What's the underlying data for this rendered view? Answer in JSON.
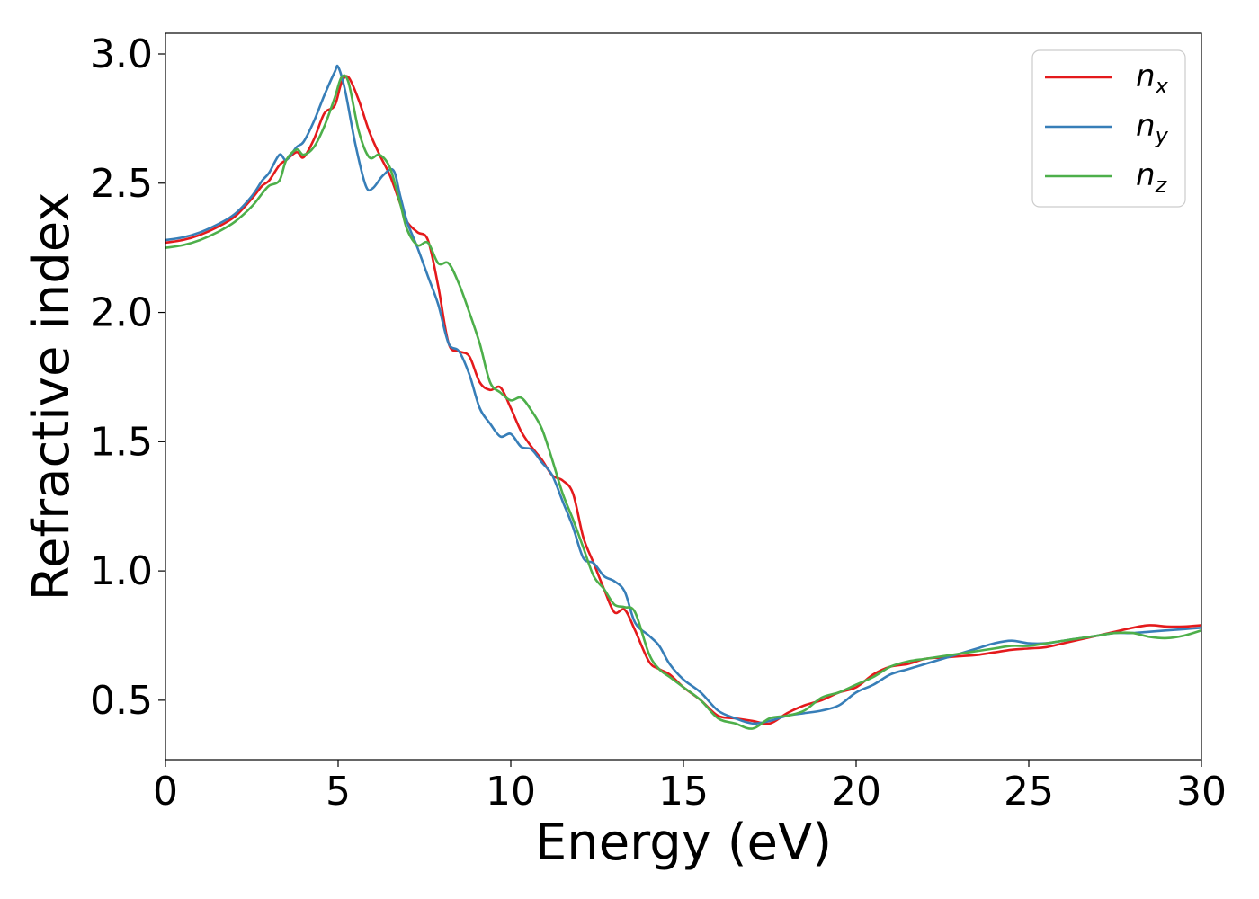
{
  "chart_data": {
    "type": "line",
    "title": "",
    "xlabel": "Energy (eV)",
    "ylabel": "Refractive index",
    "xlim": [
      0,
      30
    ],
    "ylim": [
      0.27,
      3.08
    ],
    "xticks": [
      0,
      5,
      10,
      15,
      20,
      25,
      30
    ],
    "xtick_labels": [
      "0",
      "5",
      "10",
      "15",
      "20",
      "25",
      "30"
    ],
    "yticks": [
      0.5,
      1.0,
      1.5,
      2.0,
      2.5,
      3.0
    ],
    "ytick_labels": [
      "0.5",
      "1.0",
      "1.5",
      "2.0",
      "2.5",
      "3.0"
    ],
    "grid": false,
    "legend_position": "top-right",
    "series": [
      {
        "name": "n",
        "subscript": "x",
        "color": "#e41a1c",
        "x": [
          0,
          0.5,
          1.0,
          1.5,
          2.0,
          2.5,
          2.8,
          3.0,
          3.3,
          3.5,
          3.8,
          4.0,
          4.3,
          4.6,
          4.9,
          5.1,
          5.3,
          5.6,
          5.9,
          6.2,
          6.5,
          6.8,
          7.0,
          7.3,
          7.6,
          7.9,
          8.2,
          8.5,
          8.8,
          9.1,
          9.4,
          9.7,
          10.0,
          10.3,
          10.6,
          10.9,
          11.2,
          11.5,
          11.8,
          12.1,
          12.4,
          12.7,
          13.0,
          13.3,
          13.6,
          14.0,
          14.3,
          14.6,
          15.0,
          15.5,
          16.0,
          16.5,
          17.0,
          17.5,
          18.0,
          18.5,
          19.0,
          19.5,
          20.0,
          20.5,
          21.0,
          21.5,
          22.0,
          22.5,
          23.0,
          23.5,
          24.0,
          24.5,
          25.0,
          25.5,
          26.0,
          26.5,
          27.0,
          27.5,
          28.0,
          28.5,
          29.0,
          29.5,
          30.0
        ],
        "y": [
          2.27,
          2.28,
          2.3,
          2.33,
          2.37,
          2.44,
          2.49,
          2.51,
          2.57,
          2.59,
          2.62,
          2.6,
          2.67,
          2.77,
          2.8,
          2.89,
          2.91,
          2.82,
          2.7,
          2.61,
          2.53,
          2.42,
          2.35,
          2.31,
          2.28,
          2.1,
          1.88,
          1.85,
          1.83,
          1.73,
          1.7,
          1.71,
          1.63,
          1.54,
          1.48,
          1.43,
          1.37,
          1.35,
          1.3,
          1.13,
          1.03,
          0.93,
          0.84,
          0.85,
          0.77,
          0.65,
          0.62,
          0.6,
          0.55,
          0.5,
          0.44,
          0.43,
          0.42,
          0.41,
          0.45,
          0.48,
          0.5,
          0.53,
          0.55,
          0.6,
          0.63,
          0.64,
          0.66,
          0.665,
          0.67,
          0.675,
          0.685,
          0.695,
          0.7,
          0.705,
          0.72,
          0.735,
          0.75,
          0.765,
          0.78,
          0.79,
          0.785,
          0.785,
          0.79
        ]
      },
      {
        "name": "n",
        "subscript": "y",
        "color": "#377eb8",
        "x": [
          0,
          0.5,
          1.0,
          1.5,
          2.0,
          2.5,
          2.8,
          3.0,
          3.3,
          3.5,
          3.8,
          4.0,
          4.3,
          4.6,
          4.9,
          5.0,
          5.2,
          5.5,
          5.8,
          6.0,
          6.3,
          6.6,
          6.8,
          7.0,
          7.3,
          7.6,
          7.9,
          8.2,
          8.5,
          8.8,
          9.1,
          9.4,
          9.7,
          10.0,
          10.3,
          10.6,
          10.9,
          11.2,
          11.5,
          11.8,
          12.1,
          12.4,
          12.7,
          13.0,
          13.3,
          13.6,
          14.0,
          14.3,
          14.6,
          15.0,
          15.5,
          16.0,
          16.5,
          17.0,
          17.5,
          18.0,
          18.5,
          19.0,
          19.5,
          20.0,
          20.5,
          21.0,
          21.5,
          22.0,
          22.5,
          23.0,
          23.5,
          24.0,
          24.5,
          25.0,
          25.5,
          26.0,
          26.5,
          27.0,
          27.5,
          28.0,
          28.5,
          29.0,
          29.5,
          30.0
        ],
        "y": [
          2.28,
          2.29,
          2.31,
          2.34,
          2.38,
          2.45,
          2.51,
          2.54,
          2.61,
          2.59,
          2.64,
          2.66,
          2.74,
          2.84,
          2.93,
          2.95,
          2.86,
          2.65,
          2.49,
          2.48,
          2.53,
          2.55,
          2.45,
          2.35,
          2.25,
          2.14,
          2.03,
          1.88,
          1.85,
          1.76,
          1.63,
          1.57,
          1.52,
          1.53,
          1.48,
          1.47,
          1.42,
          1.37,
          1.27,
          1.17,
          1.05,
          1.03,
          0.98,
          0.96,
          0.92,
          0.8,
          0.75,
          0.71,
          0.64,
          0.58,
          0.53,
          0.46,
          0.43,
          0.41,
          0.42,
          0.44,
          0.45,
          0.46,
          0.48,
          0.53,
          0.56,
          0.6,
          0.62,
          0.64,
          0.66,
          0.68,
          0.7,
          0.72,
          0.73,
          0.72,
          0.72,
          0.73,
          0.74,
          0.75,
          0.76,
          0.76,
          0.765,
          0.77,
          0.775,
          0.78
        ]
      },
      {
        "name": "n",
        "subscript": "z",
        "color": "#4daf4a",
        "x": [
          0,
          0.5,
          1.0,
          1.5,
          2.0,
          2.5,
          2.8,
          3.0,
          3.3,
          3.5,
          3.8,
          4.0,
          4.3,
          4.6,
          4.9,
          5.1,
          5.3,
          5.6,
          5.9,
          6.2,
          6.5,
          6.8,
          7.0,
          7.3,
          7.6,
          7.9,
          8.2,
          8.5,
          8.8,
          9.1,
          9.4,
          9.7,
          10.0,
          10.3,
          10.6,
          10.9,
          11.2,
          11.5,
          11.8,
          12.1,
          12.4,
          12.7,
          13.0,
          13.3,
          13.6,
          14.0,
          14.3,
          14.6,
          15.0,
          15.5,
          16.0,
          16.5,
          17.0,
          17.5,
          18.0,
          18.5,
          19.0,
          19.5,
          20.0,
          20.5,
          21.0,
          21.5,
          22.0,
          22.5,
          23.0,
          23.5,
          24.0,
          24.5,
          25.0,
          25.5,
          26.0,
          26.5,
          27.0,
          27.5,
          28.0,
          28.5,
          29.0,
          29.5,
          30.0
        ],
        "y": [
          2.25,
          2.26,
          2.28,
          2.31,
          2.35,
          2.41,
          2.46,
          2.49,
          2.51,
          2.59,
          2.63,
          2.61,
          2.64,
          2.72,
          2.83,
          2.91,
          2.89,
          2.7,
          2.6,
          2.61,
          2.56,
          2.42,
          2.32,
          2.26,
          2.27,
          2.19,
          2.19,
          2.11,
          2.0,
          1.88,
          1.73,
          1.69,
          1.66,
          1.67,
          1.62,
          1.55,
          1.43,
          1.3,
          1.2,
          1.09,
          0.98,
          0.93,
          0.87,
          0.86,
          0.84,
          0.68,
          0.62,
          0.59,
          0.55,
          0.5,
          0.43,
          0.41,
          0.39,
          0.43,
          0.44,
          0.46,
          0.51,
          0.53,
          0.56,
          0.59,
          0.63,
          0.65,
          0.66,
          0.67,
          0.68,
          0.69,
          0.7,
          0.71,
          0.71,
          0.72,
          0.73,
          0.74,
          0.75,
          0.76,
          0.76,
          0.745,
          0.74,
          0.75,
          0.77
        ]
      }
    ]
  }
}
